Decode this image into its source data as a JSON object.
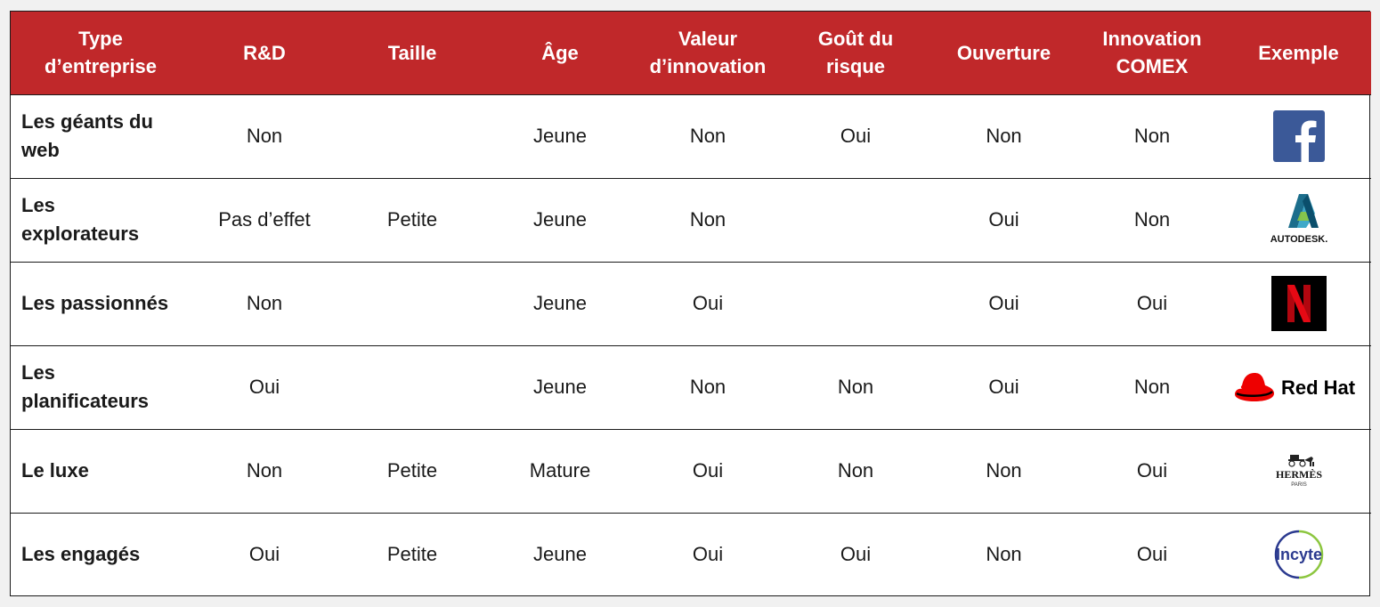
{
  "table": {
    "headers": [
      "Type\nd’entreprise",
      "R&D",
      "Taille",
      "Âge",
      "Valeur\nd’innovation",
      "Goût du\nrisque",
      "Ouverture",
      "Innovation\nCOMEX",
      "Exemple"
    ],
    "rows": [
      {
        "type": "Les géants du\nweb",
        "rd": "Non",
        "taille": "",
        "age": "Jeune",
        "valeur": "Non",
        "risque": "Oui",
        "ouverture": "Non",
        "comex": "Non",
        "logo": "facebook-logo"
      },
      {
        "type": "Les\nexplorateurs",
        "rd": "Pas d’effet",
        "taille": "Petite",
        "age": "Jeune",
        "valeur": "Non",
        "risque": "",
        "ouverture": "Oui",
        "comex": "Non",
        "logo": "autodesk-logo"
      },
      {
        "type": "Les passionnés",
        "rd": "Non",
        "taille": "",
        "age": "Jeune",
        "valeur": "Oui",
        "risque": "",
        "ouverture": "Oui",
        "comex": "Oui",
        "logo": "netflix-logo"
      },
      {
        "type": "Les\nplanificateurs",
        "rd": "Oui",
        "taille": "",
        "age": "Jeune",
        "valeur": "Non",
        "risque": "Non",
        "ouverture": "Oui",
        "comex": "Non",
        "logo": "redhat-logo"
      },
      {
        "type": "Le luxe",
        "rd": "Non",
        "taille": "Petite",
        "age": "Mature",
        "valeur": "Oui",
        "risque": "Non",
        "ouverture": "Non",
        "comex": "Oui",
        "logo": "hermes-logo"
      },
      {
        "type": "Les engagés",
        "rd": "Oui",
        "taille": "Petite",
        "age": "Jeune",
        "valeur": "Oui",
        "risque": "Oui",
        "ouverture": "Non",
        "comex": "Oui",
        "logo": "incyte-logo"
      }
    ]
  },
  "logos": {
    "autodesk": "AUTODESK.",
    "redhat": "Red Hat",
    "hermes": "HERMÈS",
    "hermes_sub": "PARIS",
    "incyte": "Incyte"
  },
  "colors": {
    "header_bg": "#c0282a",
    "header_text": "#ffffff",
    "facebook": "#3b5998",
    "netflix_red": "#e50914",
    "redhat_red": "#ee0000",
    "incyte_blue": "#2b3a8f",
    "incyte_green": "#8cc63f"
  }
}
